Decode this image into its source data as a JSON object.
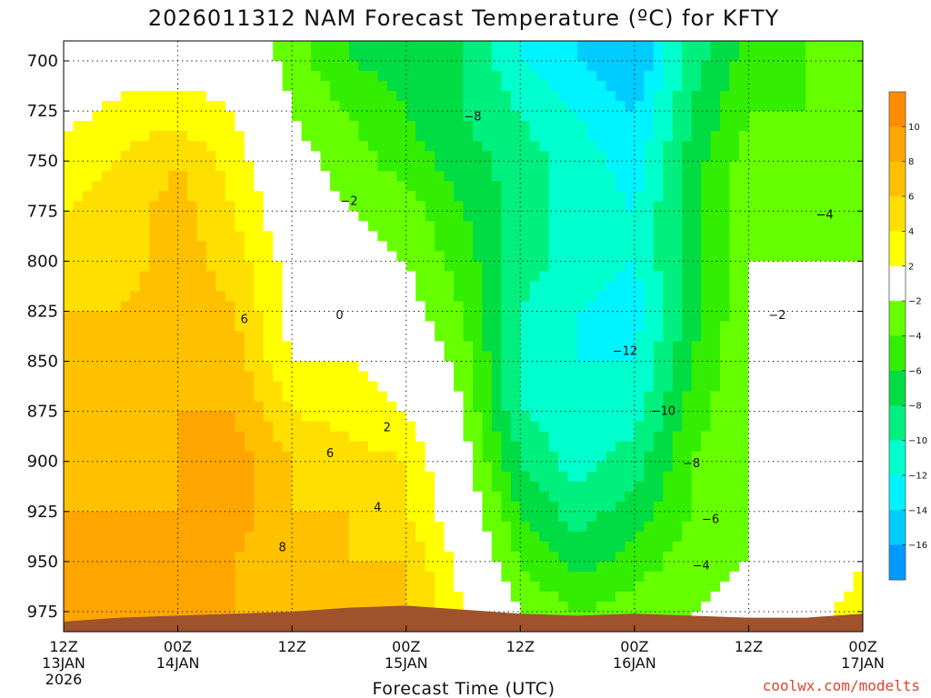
{
  "chart_data": {
    "type": "heatmap",
    "title": "2026011312 NAM Forecast Temperature (ºC) for KFTY",
    "xlabel": "Forecast Time (UTC)",
    "ylabel": "",
    "credit": "coolwx.com/modelts",
    "y_scale": "pressure (hPa), inverted",
    "ylim": [
      985,
      690
    ],
    "y_ticks": [
      700,
      725,
      750,
      775,
      800,
      825,
      850,
      875,
      900,
      925,
      950,
      975
    ],
    "xlim_hours": [
      0,
      84
    ],
    "x_ticks": [
      {
        "hour": 0,
        "line1": "12Z",
        "line2": "13JAN",
        "line3": "2026"
      },
      {
        "hour": 12,
        "line1": "00Z",
        "line2": "14JAN",
        "line3": ""
      },
      {
        "hour": 24,
        "line1": "12Z",
        "line2": "",
        "line3": ""
      },
      {
        "hour": 36,
        "line1": "00Z",
        "line2": "15JAN",
        "line3": ""
      },
      {
        "hour": 48,
        "line1": "12Z",
        "line2": "",
        "line3": ""
      },
      {
        "hour": 60,
        "line1": "00Z",
        "line2": "16JAN",
        "line3": ""
      },
      {
        "hour": 72,
        "line1": "12Z",
        "line2": "",
        "line3": ""
      },
      {
        "hour": 84,
        "line1": "00Z",
        "line2": "17JAN",
        "line3": ""
      }
    ],
    "grid": true,
    "colorbar": {
      "position": "right",
      "levels": [
        12,
        10,
        8,
        6,
        4,
        2,
        -2,
        -4,
        -6,
        -8,
        -10,
        -12,
        -14,
        -16,
        -18
      ],
      "labels": [
        "10",
        "8",
        "6",
        "4",
        "2",
        "−2",
        "−4",
        "−6",
        "−8",
        "−10",
        "−12",
        "−14",
        "−16"
      ],
      "colors": [
        "#ff8c00",
        "#ffa500",
        "#ffc000",
        "#ffdf00",
        "#ffff00",
        "#ffffff",
        "#66ff00",
        "#33ee00",
        "#00dd44",
        "#00f080",
        "#00ffcc",
        "#00f4ff",
        "#00ccff",
        "#0099ff"
      ]
    },
    "contour_labels": [
      {
        "text": "−8",
        "hour": 43,
        "p": 728
      },
      {
        "text": "−2",
        "hour": 30,
        "p": 770
      },
      {
        "text": "−4",
        "hour": 80,
        "p": 777
      },
      {
        "text": "6",
        "hour": 19,
        "p": 829
      },
      {
        "text": "0",
        "hour": 29,
        "p": 827
      },
      {
        "text": "−2",
        "hour": 75,
        "p": 827
      },
      {
        "text": "−12",
        "hour": 59,
        "p": 845
      },
      {
        "text": "−10",
        "hour": 63,
        "p": 875
      },
      {
        "text": "2",
        "hour": 34,
        "p": 883
      },
      {
        "text": "6",
        "hour": 28,
        "p": 896
      },
      {
        "text": "−8",
        "hour": 66,
        "p": 901
      },
      {
        "text": "4",
        "hour": 33,
        "p": 923
      },
      {
        "text": "−6",
        "hour": 68,
        "p": 929
      },
      {
        "text": "8",
        "hour": 23,
        "p": 943
      },
      {
        "text": "−4",
        "hour": 67,
        "p": 952
      }
    ],
    "columns": [
      {
        "hour": 0,
        "p": [
          700,
          725,
          750,
          775,
          800,
          825,
          850,
          875,
          900,
          925,
          950,
          975
        ],
        "t": [
          -1,
          1,
          3,
          4,
          5,
          6,
          6,
          7,
          8,
          8,
          9,
          8
        ]
      },
      {
        "hour": 6,
        "p": [
          700,
          725,
          750,
          775,
          800,
          825,
          850,
          875,
          900,
          925,
          950,
          975
        ],
        "t": [
          0,
          3,
          4,
          5,
          5,
          6,
          7,
          7,
          8,
          8,
          9,
          10
        ]
      },
      {
        "hour": 12,
        "p": [
          700,
          725,
          750,
          775,
          800,
          825,
          850,
          875,
          900,
          925,
          950,
          975
        ],
        "t": [
          1,
          3,
          6,
          7,
          7,
          8,
          8,
          8,
          8,
          8,
          9,
          10
        ]
      },
      {
        "hour": 18,
        "p": [
          700,
          725,
          750,
          775,
          800,
          825,
          850,
          875,
          900,
          925,
          950,
          975
        ],
        "t": [
          1,
          2,
          3,
          4,
          5,
          6,
          7,
          8,
          9,
          9,
          8,
          8
        ]
      },
      {
        "hour": 24,
        "p": [
          700,
          725,
          750,
          775,
          800,
          825,
          850,
          875,
          900,
          925,
          950,
          975
        ],
        "t": [
          -3,
          -2,
          -1,
          0,
          1,
          1,
          2,
          4,
          6,
          6,
          7,
          7
        ]
      },
      {
        "hour": 30,
        "p": [
          700,
          725,
          750,
          775,
          800,
          825,
          850,
          875,
          900,
          925,
          950,
          975
        ],
        "t": [
          -6,
          -4,
          -3,
          -2,
          -1,
          0,
          2,
          3,
          5,
          6,
          6,
          7
        ]
      },
      {
        "hour": 36,
        "p": [
          700,
          725,
          750,
          775,
          800,
          825,
          850,
          875,
          900,
          925,
          950,
          975
        ],
        "t": [
          -7,
          -6,
          -5,
          -3,
          -2,
          -1,
          1,
          2,
          4,
          4,
          6,
          6
        ]
      },
      {
        "hour": 42,
        "p": [
          700,
          725,
          750,
          775,
          800,
          825,
          850,
          875,
          900,
          925,
          950,
          975
        ],
        "t": [
          -8,
          -8,
          -7,
          -6,
          -5,
          -4,
          -3,
          -2,
          -1,
          0,
          1,
          2
        ]
      },
      {
        "hour": 48,
        "p": [
          700,
          725,
          750,
          775,
          800,
          825,
          850,
          875,
          900,
          925,
          950,
          975
        ],
        "t": [
          -12,
          -10,
          -9,
          -9,
          -9,
          -10,
          -10,
          -10,
          -8,
          -6,
          -4,
          -2
        ]
      },
      {
        "hour": 54,
        "p": [
          700,
          725,
          750,
          775,
          800,
          825,
          850,
          875,
          900,
          925,
          950,
          975
        ],
        "t": [
          -14,
          -12,
          -11,
          -11,
          -11,
          -12,
          -12,
          -11,
          -11,
          -9,
          -7,
          -4
        ]
      },
      {
        "hour": 60,
        "p": [
          700,
          725,
          750,
          775,
          800,
          825,
          850,
          875,
          900,
          925,
          950,
          975
        ],
        "t": [
          -16,
          -14,
          -13,
          -12,
          -12,
          -13,
          -12,
          -11,
          -9,
          -7,
          -5,
          -3
        ]
      },
      {
        "hour": 66,
        "p": [
          700,
          725,
          750,
          775,
          800,
          825,
          850,
          875,
          900,
          925,
          950,
          975
        ],
        "t": [
          -9,
          -8,
          -7,
          -7,
          -7,
          -7,
          -6,
          -5,
          -4,
          -4,
          -3,
          -2
        ]
      },
      {
        "hour": 72,
        "p": [
          700,
          725,
          750,
          775,
          800,
          825,
          850,
          875,
          900,
          925,
          950,
          975
        ],
        "t": [
          -5,
          -4,
          -3,
          -2,
          -2,
          -2,
          -2,
          -2,
          -2,
          -2,
          -2,
          -1
        ]
      },
      {
        "hour": 78,
        "p": [
          700,
          725,
          750,
          775,
          800,
          825,
          850,
          875,
          900,
          925,
          950,
          975
        ],
        "t": [
          -4,
          -4,
          -4,
          -3,
          -2,
          -1,
          -1,
          -1,
          -1,
          -1,
          -1,
          1
        ]
      },
      {
        "hour": 84,
        "p": [
          700,
          725,
          750,
          775,
          800,
          825,
          850,
          875,
          900,
          925,
          950,
          975
        ],
        "t": [
          -3,
          -3,
          -3,
          -3,
          -2,
          -2,
          -1,
          -1,
          -1,
          1,
          2,
          3
        ]
      }
    ]
  }
}
